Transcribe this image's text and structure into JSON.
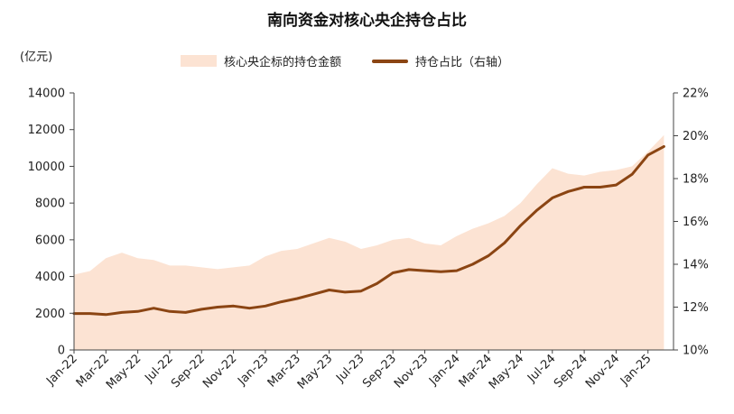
{
  "chart_data": {
    "type": "area",
    "title": "南向资金对核心央企持仓占比",
    "unit_label": "(亿元)",
    "x_categories": [
      "Jan-22",
      "Mar-22",
      "May-22",
      "Jul-22",
      "Sep-22",
      "Nov-22",
      "Jan-23",
      "Mar-23",
      "May-23",
      "Jul-23",
      "Sep-23",
      "Nov-23",
      "Jan-24",
      "Mar-24",
      "May-24",
      "Jul-24",
      "Sep-24",
      "Nov-24",
      "Jan-25"
    ],
    "y_left": {
      "min": 0,
      "max": 14000,
      "step": 2000,
      "ticks": [
        "0",
        "2000",
        "4000",
        "6000",
        "8000",
        "10000",
        "12000",
        "14000"
      ]
    },
    "y_right": {
      "min": 10,
      "max": 22,
      "step": 2,
      "ticks": [
        "10%",
        "12%",
        "14%",
        "16%",
        "18%",
        "20%",
        "22%"
      ]
    },
    "legend_position": "top",
    "grid": false,
    "series": [
      {
        "name": "核心央企标的持仓金额",
        "type": "area",
        "axis": "left",
        "color": "#fce3d3",
        "points": [
          [
            0,
            4100
          ],
          [
            0.5,
            4300
          ],
          [
            1,
            5000
          ],
          [
            1.5,
            5300
          ],
          [
            2,
            5000
          ],
          [
            2.5,
            4900
          ],
          [
            3,
            4600
          ],
          [
            3.5,
            4600
          ],
          [
            4,
            4500
          ],
          [
            4.5,
            4400
          ],
          [
            5,
            4500
          ],
          [
            5.5,
            4600
          ],
          [
            6,
            5100
          ],
          [
            6.5,
            5400
          ],
          [
            7,
            5500
          ],
          [
            7.5,
            5800
          ],
          [
            8,
            6100
          ],
          [
            8.5,
            5900
          ],
          [
            9,
            5500
          ],
          [
            9.5,
            5700
          ],
          [
            10,
            6000
          ],
          [
            10.5,
            6100
          ],
          [
            11,
            5800
          ],
          [
            11.5,
            5700
          ],
          [
            12,
            6200
          ],
          [
            12.5,
            6600
          ],
          [
            13,
            6900
          ],
          [
            13.5,
            7300
          ],
          [
            14,
            8000
          ],
          [
            14.5,
            9000
          ],
          [
            15,
            9900
          ],
          [
            15.5,
            9600
          ],
          [
            16,
            9500
          ],
          [
            16.5,
            9700
          ],
          [
            17,
            9800
          ],
          [
            17.5,
            10000
          ],
          [
            18,
            10800
          ],
          [
            18.5,
            11700
          ]
        ]
      },
      {
        "name": "持仓占比（右轴）",
        "type": "line",
        "axis": "right",
        "color": "#8b4513",
        "points": [
          [
            0,
            11.7
          ],
          [
            0.5,
            11.7
          ],
          [
            1,
            11.65
          ],
          [
            1.5,
            11.75
          ],
          [
            2,
            11.8
          ],
          [
            2.5,
            11.95
          ],
          [
            3,
            11.8
          ],
          [
            3.5,
            11.75
          ],
          [
            4,
            11.9
          ],
          [
            4.5,
            12.0
          ],
          [
            5,
            12.05
          ],
          [
            5.5,
            11.95
          ],
          [
            6,
            12.05
          ],
          [
            6.5,
            12.25
          ],
          [
            7,
            12.4
          ],
          [
            7.5,
            12.6
          ],
          [
            8,
            12.8
          ],
          [
            8.5,
            12.7
          ],
          [
            9,
            12.75
          ],
          [
            9.5,
            13.1
          ],
          [
            10,
            13.6
          ],
          [
            10.5,
            13.75
          ],
          [
            11,
            13.7
          ],
          [
            11.5,
            13.65
          ],
          [
            12,
            13.7
          ],
          [
            12.5,
            14.0
          ],
          [
            13,
            14.4
          ],
          [
            13.5,
            15.0
          ],
          [
            14,
            15.8
          ],
          [
            14.5,
            16.5
          ],
          [
            15,
            17.1
          ],
          [
            15.5,
            17.4
          ],
          [
            16,
            17.6
          ],
          [
            16.5,
            17.6
          ],
          [
            17,
            17.7
          ],
          [
            17.5,
            18.2
          ],
          [
            18,
            19.1
          ],
          [
            18.5,
            19.5
          ]
        ]
      }
    ]
  }
}
